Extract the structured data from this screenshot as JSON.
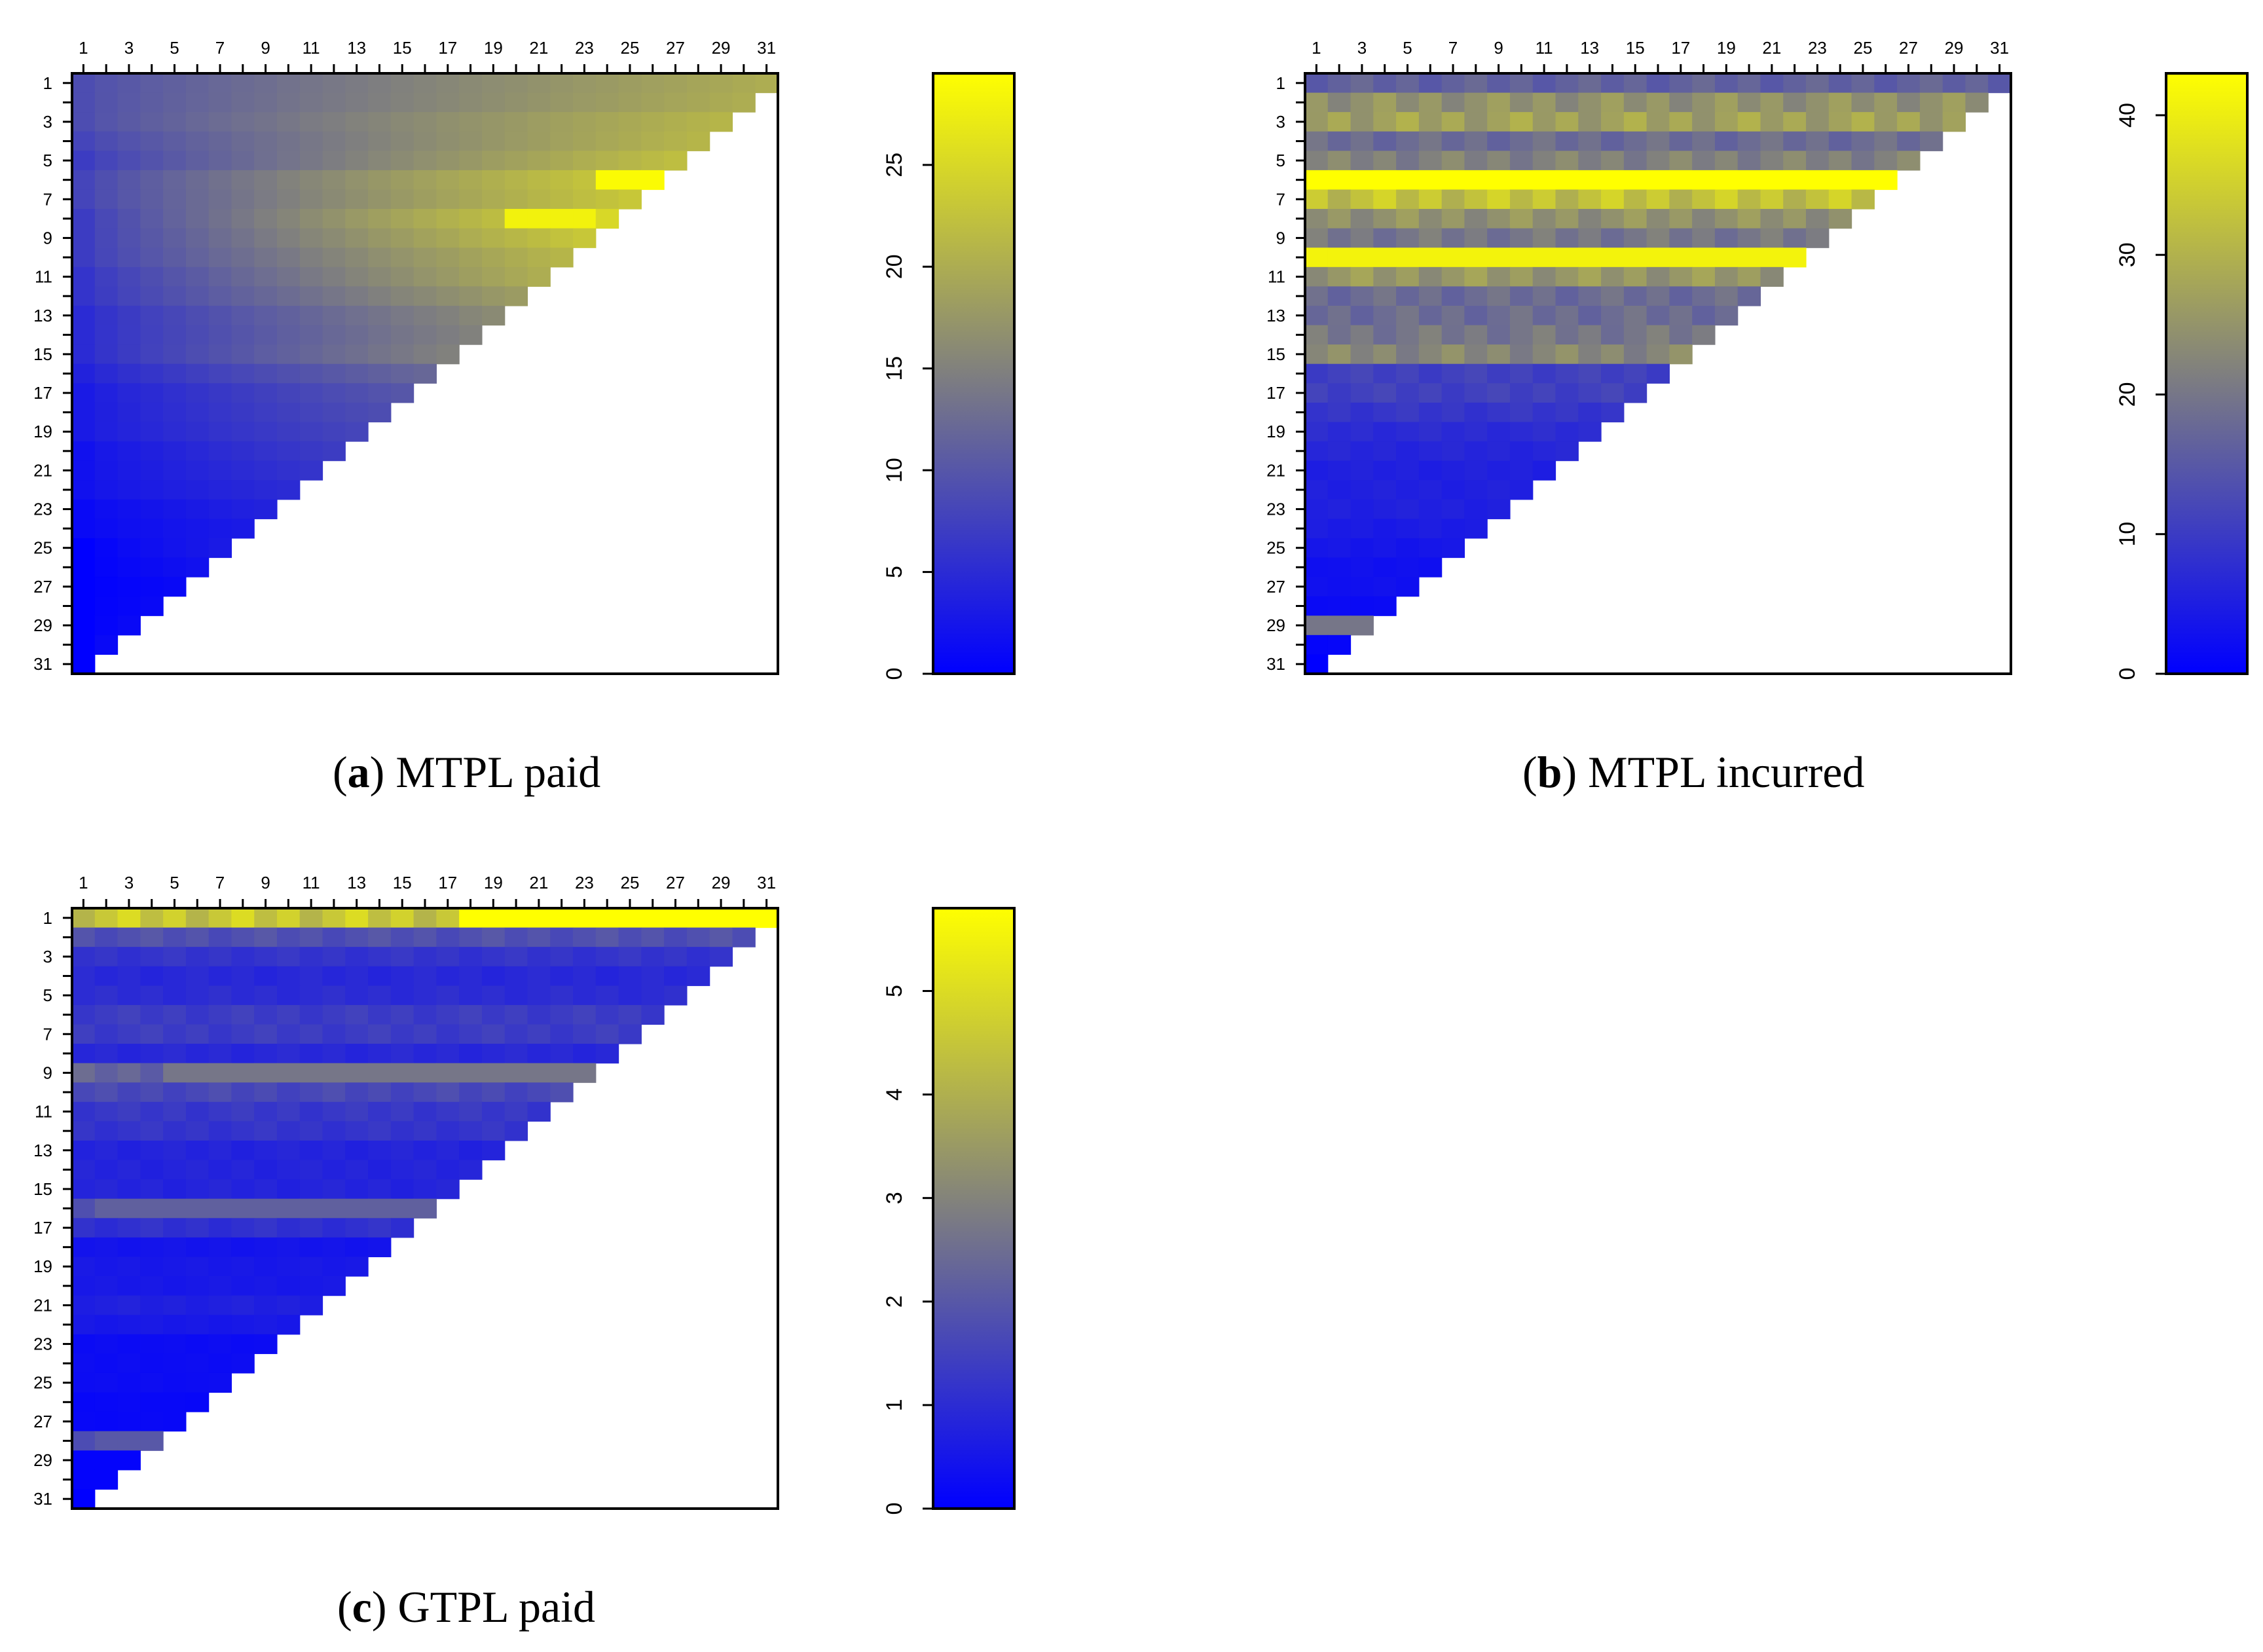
{
  "chart_data": [
    {
      "type": "heatmap",
      "panel": "a",
      "caption_label": "a",
      "caption_text": "MTPL paid",
      "grid_size": 31,
      "shape": "upper-left triangle (row r has 32 - r columns)",
      "x_tick_labels": [
        "1",
        "3",
        "5",
        "7",
        "9",
        "11",
        "13",
        "15",
        "17",
        "19",
        "21",
        "23",
        "25",
        "27",
        "29",
        "31"
      ],
      "y_tick_labels": [
        "1",
        "3",
        "5",
        "7",
        "9",
        "11",
        "13",
        "15",
        "17",
        "19",
        "21",
        "23",
        "25",
        "27",
        "29",
        "31"
      ],
      "colorbar": {
        "min": 0,
        "max": 29.5,
        "ticks": [
          "0",
          "5",
          "10",
          "15",
          "20",
          "25"
        ],
        "low_color": "#0000ff",
        "mid_color": "#7f7f7f",
        "high_color": "#ffff00"
      },
      "row_profile": {
        "rows": [
          1,
          2,
          3,
          4,
          5,
          6,
          7,
          8,
          9,
          10,
          11,
          12,
          13,
          14,
          15,
          16,
          17,
          18,
          19,
          20,
          21,
          22,
          23,
          24,
          25,
          26,
          27,
          28,
          29,
          30,
          31
        ],
        "start": [
          9,
          9,
          9,
          8,
          7,
          8,
          8,
          7,
          7,
          7,
          6,
          6,
          5,
          5,
          5,
          4,
          3,
          3,
          3,
          2,
          2,
          2,
          1,
          1,
          0,
          0,
          0,
          0,
          0,
          0,
          0
        ],
        "end": [
          20,
          20,
          21,
          21,
          22,
          24,
          23,
          25,
          23,
          21,
          20,
          18,
          16,
          15,
          15,
          12,
          10,
          9,
          8,
          7,
          6,
          5,
          4,
          3,
          3,
          2,
          1,
          1,
          1,
          1,
          1
        ]
      },
      "highlights": [
        {
          "row": 6,
          "from_col": 24,
          "to_col": 26,
          "value": 29
        },
        {
          "row": 8,
          "from_col": 20,
          "to_col": 23,
          "value": 28
        }
      ]
    },
    {
      "type": "heatmap",
      "panel": "b",
      "caption_label": "b",
      "caption_text": "MTPL incurred",
      "grid_size": 31,
      "shape": "upper-left triangle (row r has 32 - r columns)",
      "x_tick_labels": [
        "1",
        "3",
        "5",
        "7",
        "9",
        "11",
        "13",
        "15",
        "17",
        "19",
        "21",
        "23",
        "25",
        "27",
        "29",
        "31"
      ],
      "y_tick_labels": [
        "1",
        "3",
        "5",
        "7",
        "9",
        "11",
        "13",
        "15",
        "17",
        "19",
        "21",
        "23",
        "25",
        "27",
        "29",
        "31"
      ],
      "colorbar": {
        "min": 0,
        "max": 43,
        "ticks": [
          "0",
          "10",
          "20",
          "30",
          "40"
        ],
        "low_color": "#0000ff",
        "mid_color": "#7f7f7f",
        "high_color": "#ffff00"
      },
      "row_values": [
        18,
        27,
        30,
        20,
        24,
        42,
        36,
        27,
        22,
        38,
        28,
        20,
        20,
        22,
        25,
        12,
        12,
        10,
        8,
        7,
        6,
        6,
        6,
        5,
        4,
        3,
        3,
        2,
        20,
        1,
        0
      ],
      "highlights": [
        {
          "row": 6,
          "from_col": 1,
          "to_col": 26,
          "value": 43
        },
        {
          "row": 10,
          "from_col": 1,
          "to_col": 22,
          "value": 41
        },
        {
          "row": 29,
          "from_col": 1,
          "to_col": 3,
          "value": 20
        }
      ]
    },
    {
      "type": "heatmap",
      "panel": "c",
      "caption_label": "c",
      "caption_text": "GTPL paid",
      "grid_size": 31,
      "shape": "upper-left triangle (row r has 32 - r columns)",
      "x_tick_labels": [
        "1",
        "3",
        "5",
        "7",
        "9",
        "11",
        "13",
        "15",
        "17",
        "19",
        "21",
        "23",
        "25",
        "27",
        "29",
        "31"
      ],
      "y_tick_labels": [
        "1",
        "3",
        "5",
        "7",
        "9",
        "11",
        "13",
        "15",
        "17",
        "19",
        "21",
        "23",
        "25",
        "27",
        "29",
        "31"
      ],
      "colorbar": {
        "min": 0,
        "max": 5.8,
        "ticks": [
          "0",
          "1",
          "2",
          "3",
          "4",
          "5"
        ],
        "low_color": "#0000ff",
        "mid_color": "#7f7f7f",
        "high_color": "#ffff00"
      },
      "row_values": [
        5.0,
        2.0,
        1.3,
        1.0,
        1.1,
        1.5,
        1.5,
        1.0,
        2.5,
        1.8,
        1.4,
        1.3,
        0.9,
        0.9,
        0.9,
        2.2,
        1.2,
        0.5,
        0.6,
        0.6,
        0.8,
        0.6,
        0.3,
        0.3,
        0.3,
        0.2,
        0.2,
        2.0,
        0.1,
        0.1,
        0.0
      ],
      "highlights": [
        {
          "row": 1,
          "from_col": 18,
          "to_col": 31,
          "value": 5.8
        },
        {
          "row": 9,
          "from_col": 5,
          "to_col": 23,
          "value": 2.7
        },
        {
          "row": 16,
          "from_col": 2,
          "to_col": 16,
          "value": 2.2
        },
        {
          "row": 28,
          "from_col": 2,
          "to_col": 4,
          "value": 2.0
        }
      ]
    }
  ]
}
